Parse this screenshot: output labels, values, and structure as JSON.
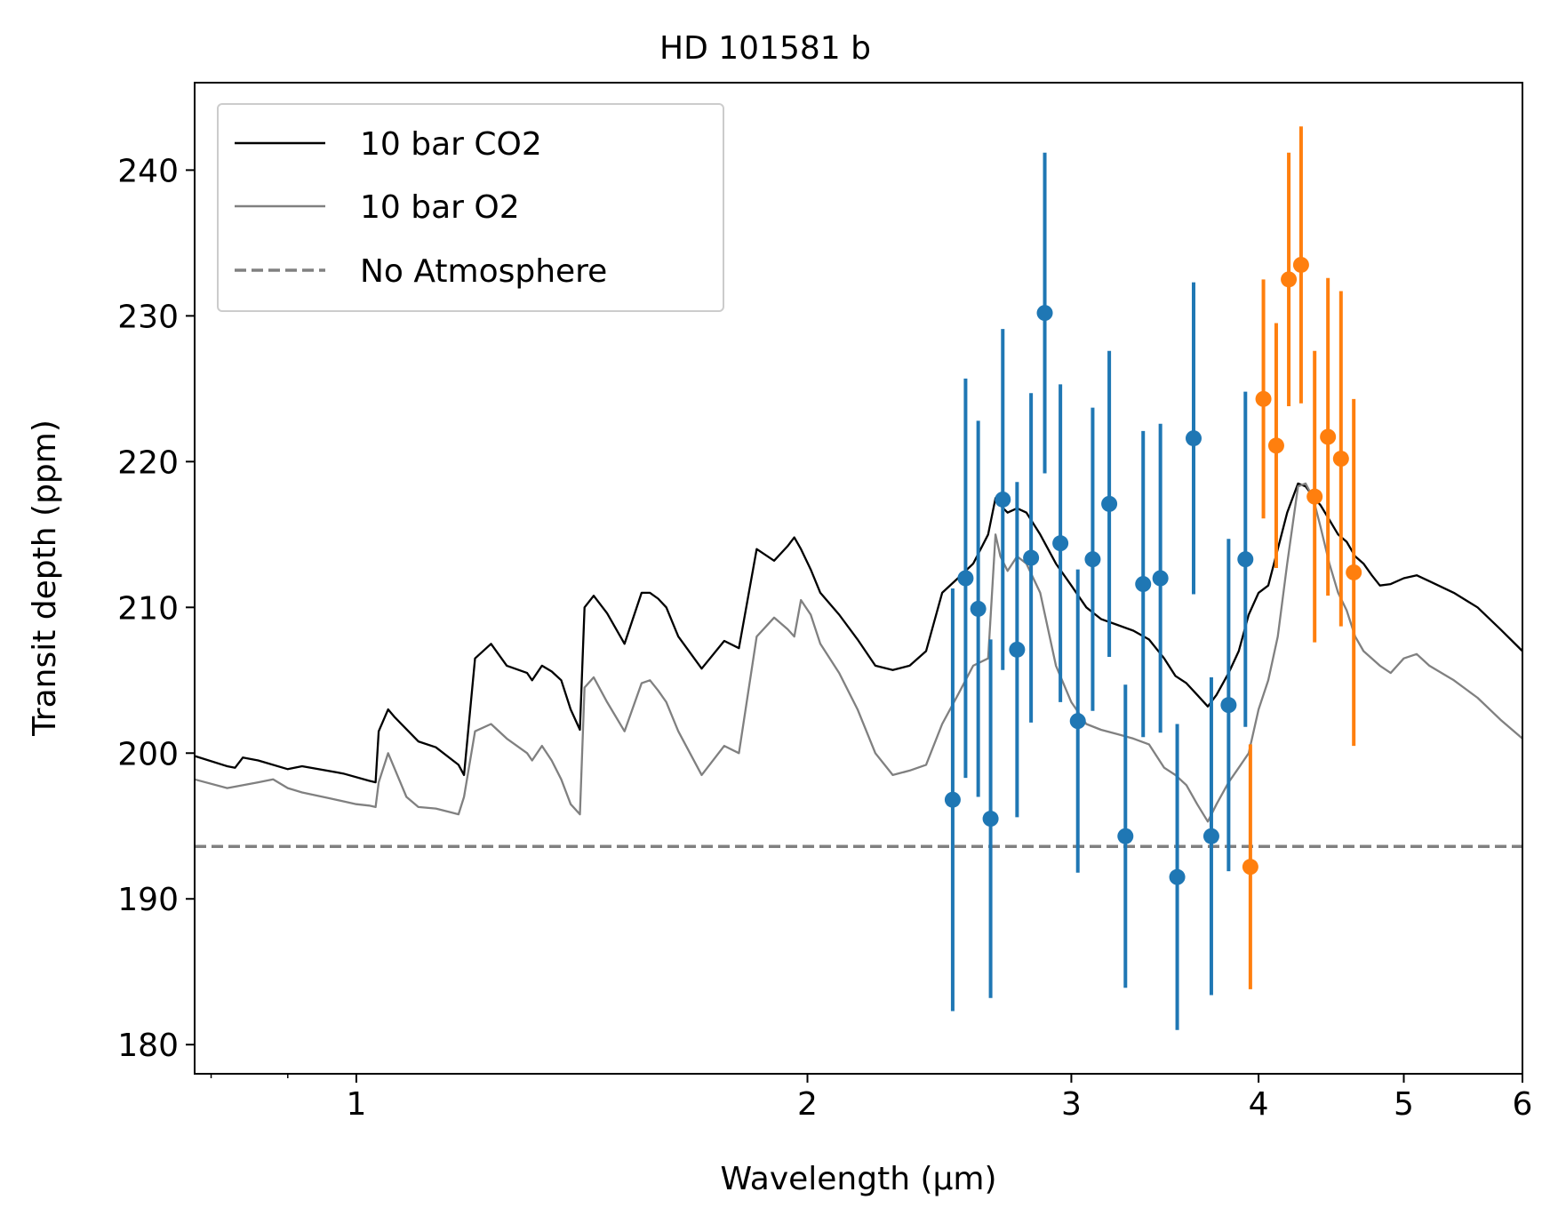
{
  "chart_data": {
    "type": "line",
    "title": "HD 101581 b",
    "xlabel": "Wavelength (μm)",
    "ylabel": "Transit depth (ppm)",
    "xscale": "log",
    "xlim": [
      0.78,
      6.0
    ],
    "ylim": [
      178,
      246
    ],
    "grid": false,
    "legend_position": "upper-left",
    "x_ticks": [
      1,
      2,
      3,
      4,
      5,
      6
    ],
    "x_tick_labels": [
      "1",
      "2",
      "3",
      "4",
      "5",
      "6"
    ],
    "y_ticks": [
      180,
      190,
      200,
      210,
      220,
      230,
      240
    ],
    "y_tick_labels": [
      "180",
      "190",
      "200",
      "210",
      "220",
      "230",
      "240"
    ],
    "colors": {
      "co2": "#000000",
      "o2": "#808080",
      "flat": "#808080",
      "blue": "#1f77b4",
      "orange": "#ff7f0e"
    },
    "series": [
      {
        "name": "10 bar CO2",
        "style": "solid",
        "x": [
          0.78,
          0.82,
          0.83,
          0.84,
          0.86,
          0.9,
          0.92,
          0.98,
          1.02,
          1.03,
          1.035,
          1.05,
          1.06,
          1.1,
          1.13,
          1.17,
          1.18,
          1.2,
          1.23,
          1.26,
          1.3,
          1.31,
          1.33,
          1.35,
          1.37,
          1.39,
          1.41,
          1.42,
          1.44,
          1.47,
          1.51,
          1.55,
          1.57,
          1.59,
          1.61,
          1.64,
          1.7,
          1.76,
          1.8,
          1.85,
          1.9,
          1.94,
          1.96,
          1.98,
          2.01,
          2.04,
          2.1,
          2.16,
          2.22,
          2.28,
          2.34,
          2.4,
          2.46,
          2.52,
          2.58,
          2.64,
          2.67,
          2.69,
          2.72,
          2.76,
          2.8,
          2.86,
          2.93,
          3.0,
          3.07,
          3.14,
          3.22,
          3.3,
          3.38,
          3.46,
          3.52,
          3.58,
          3.64,
          3.7,
          3.75,
          3.82,
          3.88,
          3.94,
          4.0,
          4.06,
          4.12,
          4.18,
          4.25,
          4.3,
          4.35,
          4.4,
          4.46,
          4.52,
          4.58,
          4.64,
          4.7,
          4.76,
          4.82,
          4.9,
          5.0,
          5.1,
          5.2,
          5.4,
          5.6,
          5.8,
          6.0
        ],
        "y": [
          199.8,
          199.1,
          199.0,
          199.7,
          199.5,
          198.9,
          199.1,
          198.6,
          198.1,
          198.0,
          201.5,
          203.0,
          202.5,
          200.8,
          200.4,
          199.2,
          198.5,
          206.5,
          207.5,
          206.0,
          205.5,
          205.0,
          206.0,
          205.6,
          205.0,
          203.0,
          201.6,
          210.0,
          210.8,
          209.6,
          207.5,
          211.0,
          211.0,
          210.6,
          210.0,
          208.0,
          205.8,
          207.7,
          207.2,
          214.0,
          213.2,
          214.2,
          214.8,
          214.0,
          212.6,
          211.0,
          209.5,
          207.8,
          206.0,
          205.7,
          206.0,
          207.0,
          211.0,
          212.0,
          213.0,
          215.0,
          217.5,
          217.0,
          216.5,
          216.8,
          216.5,
          215.0,
          213.0,
          211.5,
          210.0,
          209.2,
          208.8,
          208.4,
          207.8,
          206.5,
          205.3,
          204.8,
          204.0,
          203.2,
          204.0,
          205.5,
          207.0,
          209.5,
          211.0,
          211.5,
          214.0,
          216.5,
          218.5,
          218.3,
          217.6,
          217.0,
          216.0,
          215.0,
          214.5,
          213.5,
          213.0,
          212.2,
          211.5,
          211.6,
          212.0,
          212.2,
          211.8,
          211.0,
          210.0,
          208.5,
          207.0
        ]
      },
      {
        "name": "10 bar O2",
        "style": "solid",
        "x": [
          0.78,
          0.82,
          0.86,
          0.88,
          0.9,
          0.92,
          0.96,
          1.0,
          1.02,
          1.03,
          1.035,
          1.05,
          1.08,
          1.1,
          1.13,
          1.17,
          1.18,
          1.2,
          1.23,
          1.26,
          1.3,
          1.31,
          1.33,
          1.35,
          1.37,
          1.39,
          1.41,
          1.42,
          1.44,
          1.47,
          1.51,
          1.55,
          1.57,
          1.59,
          1.61,
          1.64,
          1.7,
          1.76,
          1.8,
          1.85,
          1.9,
          1.94,
          1.96,
          1.98,
          2.01,
          2.04,
          2.1,
          2.16,
          2.22,
          2.28,
          2.34,
          2.4,
          2.46,
          2.52,
          2.58,
          2.64,
          2.67,
          2.69,
          2.72,
          2.76,
          2.8,
          2.86,
          2.93,
          3.0,
          3.07,
          3.14,
          3.22,
          3.3,
          3.38,
          3.46,
          3.52,
          3.58,
          3.64,
          3.7,
          3.75,
          3.82,
          3.88,
          3.94,
          4.0,
          4.06,
          4.12,
          4.18,
          4.25,
          4.3,
          4.35,
          4.4,
          4.46,
          4.52,
          4.58,
          4.64,
          4.7,
          4.76,
          4.82,
          4.9,
          5.0,
          5.1,
          5.2,
          5.4,
          5.6,
          5.8,
          6.0
        ],
        "y": [
          198.2,
          197.6,
          198.0,
          198.2,
          197.6,
          197.3,
          196.9,
          196.5,
          196.4,
          196.3,
          198.0,
          200.0,
          197.0,
          196.3,
          196.2,
          195.8,
          197.0,
          201.5,
          202.0,
          201.0,
          200.0,
          199.5,
          200.5,
          199.5,
          198.2,
          196.5,
          195.8,
          204.5,
          205.2,
          203.5,
          201.5,
          204.8,
          205.0,
          204.3,
          203.5,
          201.5,
          198.5,
          200.5,
          200.0,
          208.0,
          209.3,
          208.5,
          208.0,
          210.5,
          209.5,
          207.5,
          205.5,
          203.0,
          200.0,
          198.5,
          198.8,
          199.2,
          202.0,
          204.0,
          206.0,
          206.5,
          215.0,
          213.5,
          212.5,
          213.5,
          213.0,
          211.0,
          206.0,
          203.5,
          202.0,
          201.6,
          201.3,
          201.0,
          200.6,
          199.0,
          198.5,
          197.8,
          196.5,
          195.3,
          196.5,
          198.0,
          199.0,
          200.0,
          203.0,
          205.0,
          208.0,
          213.0,
          218.3,
          218.5,
          217.5,
          215.5,
          213.0,
          211.0,
          209.8,
          208.0,
          207.0,
          206.5,
          206.0,
          205.5,
          206.5,
          206.8,
          206.0,
          205.0,
          203.8,
          202.3,
          201.0
        ]
      },
      {
        "name": "No Atmosphere",
        "style": "dashed",
        "x": [
          0.78,
          6.0
        ],
        "y": [
          193.6,
          193.6
        ]
      }
    ],
    "error_series": [
      {
        "name": "blue-points",
        "color": "blue",
        "x": [
          2.5,
          2.55,
          2.6,
          2.65,
          2.7,
          2.76,
          2.82,
          2.88,
          2.95,
          3.03,
          3.1,
          3.18,
          3.26,
          3.35,
          3.44,
          3.53,
          3.62,
          3.72,
          3.82,
          3.92
        ],
        "y": [
          196.8,
          212.0,
          209.9,
          195.5,
          217.4,
          207.1,
          213.4,
          230.2,
          214.4,
          202.2,
          213.3,
          217.1,
          194.3,
          211.6,
          212.0,
          191.5,
          221.6,
          194.3,
          203.3,
          213.3
        ],
        "err": [
          14.5,
          13.7,
          12.9,
          12.3,
          11.7,
          11.5,
          11.3,
          11.0,
          10.9,
          10.4,
          10.4,
          10.5,
          10.4,
          10.5,
          10.6,
          10.5,
          10.7,
          10.9,
          11.4,
          11.5
        ]
      },
      {
        "name": "orange-points",
        "color": "orange",
        "x": [
          3.95,
          4.03,
          4.11,
          4.19,
          4.27,
          4.36,
          4.45,
          4.54,
          4.63
        ],
        "y": [
          192.2,
          224.3,
          221.1,
          232.5,
          233.5,
          217.6,
          221.7,
          220.2,
          212.4
        ],
        "err": [
          8.4,
          8.2,
          8.4,
          8.7,
          9.5,
          10.0,
          10.9,
          11.5,
          11.9
        ]
      }
    ]
  }
}
